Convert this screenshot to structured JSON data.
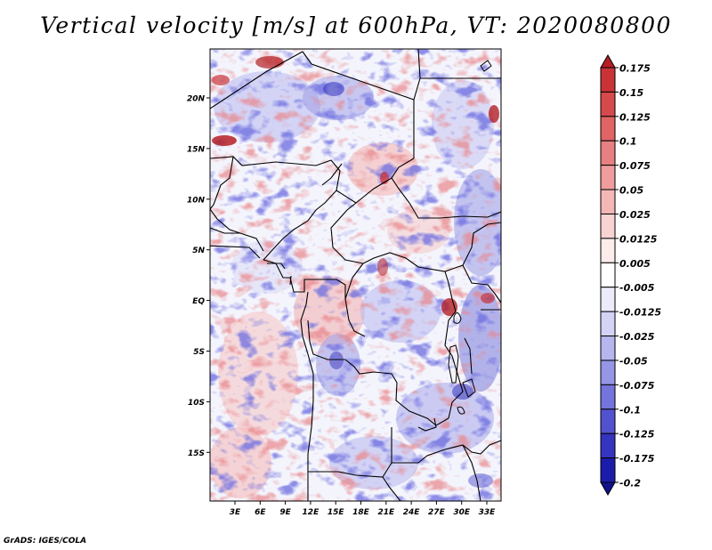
{
  "title": "Vertical velocity [m/s] at 600hPa, VT: 2020080800",
  "credit": "GrADS: IGES/COLA",
  "map": {
    "lat_labels": [
      "20N",
      "15N",
      "10N",
      "5N",
      "EQ",
      "5S",
      "10S",
      "15S"
    ],
    "lon_labels": [
      "3E",
      "6E",
      "9E",
      "12E",
      "15E",
      "18E",
      "21E",
      "24E",
      "27E",
      "30E",
      "33E"
    ]
  },
  "colorbar": {
    "labels": [
      "0.175",
      "0.15",
      "0.125",
      "0.1",
      "0.075",
      "0.05",
      "0.025",
      "0.0125",
      "0.005",
      "-0.005",
      "-0.0125",
      "-0.025",
      "-0.05",
      "-0.075",
      "-0.1",
      "-0.125",
      "-0.175",
      "-0.2"
    ],
    "colors": [
      "#b41f24",
      "#c93338",
      "#d6494c",
      "#e06464",
      "#e78080",
      "#ee9d9c",
      "#f3b8b6",
      "#f8d3d1",
      "#fcecea",
      "#ffffff",
      "#ebebfa",
      "#d3d3f5",
      "#b6b6ee",
      "#9696e6",
      "#7474dc",
      "#5252cf",
      "#3434bf",
      "#1c1cab",
      "#11118f"
    ]
  }
}
